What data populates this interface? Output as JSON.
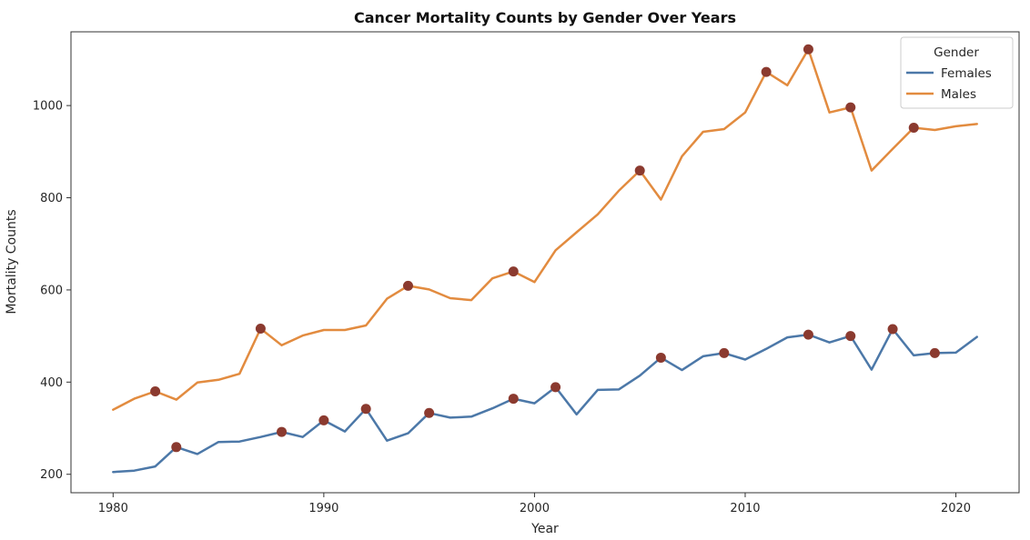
{
  "chart_data": {
    "type": "line",
    "title": "Cancer Mortality Counts by Gender Over Years",
    "xlabel": "Year",
    "ylabel": "Mortality Counts",
    "xlim": [
      1978,
      2023
    ],
    "ylim": [
      160,
      1160
    ],
    "xticks": [
      1980,
      1990,
      2000,
      2010,
      2020
    ],
    "yticks": [
      200,
      400,
      600,
      800,
      1000
    ],
    "grid": false,
    "legend": {
      "title": "Gender",
      "position": "top-right"
    },
    "x": [
      1980,
      1981,
      1982,
      1983,
      1984,
      1985,
      1986,
      1987,
      1988,
      1989,
      1990,
      1991,
      1992,
      1993,
      1994,
      1995,
      1996,
      1997,
      1998,
      1999,
      2000,
      2001,
      2002,
      2003,
      2004,
      2005,
      2006,
      2007,
      2008,
      2009,
      2010,
      2011,
      2012,
      2013,
      2014,
      2015,
      2016,
      2017,
      2018,
      2019,
      2020,
      2021
    ],
    "series": [
      {
        "name": "Females",
        "color": "#4c78a8",
        "values": [
          205,
          208,
          217,
          259,
          244,
          270,
          271,
          281,
          292,
          281,
          317,
          293,
          342,
          273,
          289,
          333,
          323,
          325,
          343,
          364,
          354,
          389,
          330,
          383,
          384,
          414,
          453,
          426,
          456,
          463,
          449,
          472,
          497,
          503,
          486,
          500,
          427,
          515,
          458,
          463,
          464,
          498
        ]
      },
      {
        "name": "Males",
        "color": "#e28b3f",
        "values": [
          340,
          364,
          380,
          362,
          399,
          405,
          418,
          516,
          480,
          501,
          513,
          513,
          523,
          581,
          609,
          601,
          582,
          578,
          625,
          640,
          617,
          686,
          725,
          764,
          815,
          859,
          796,
          890,
          943,
          949,
          985,
          1073,
          1044,
          1122,
          985,
          996,
          859,
          906,
          952,
          947,
          955,
          960
        ]
      }
    ],
    "highlighted_points": {
      "color": "#8b3a2f",
      "Females": [
        1983,
        1988,
        1990,
        1992,
        1995,
        1999,
        2001,
        2006,
        2009,
        2013,
        2015,
        2017,
        2019
      ],
      "Males": [
        1982,
        1987,
        1994,
        1999,
        2005,
        2011,
        2013,
        2015,
        2018
      ]
    }
  }
}
